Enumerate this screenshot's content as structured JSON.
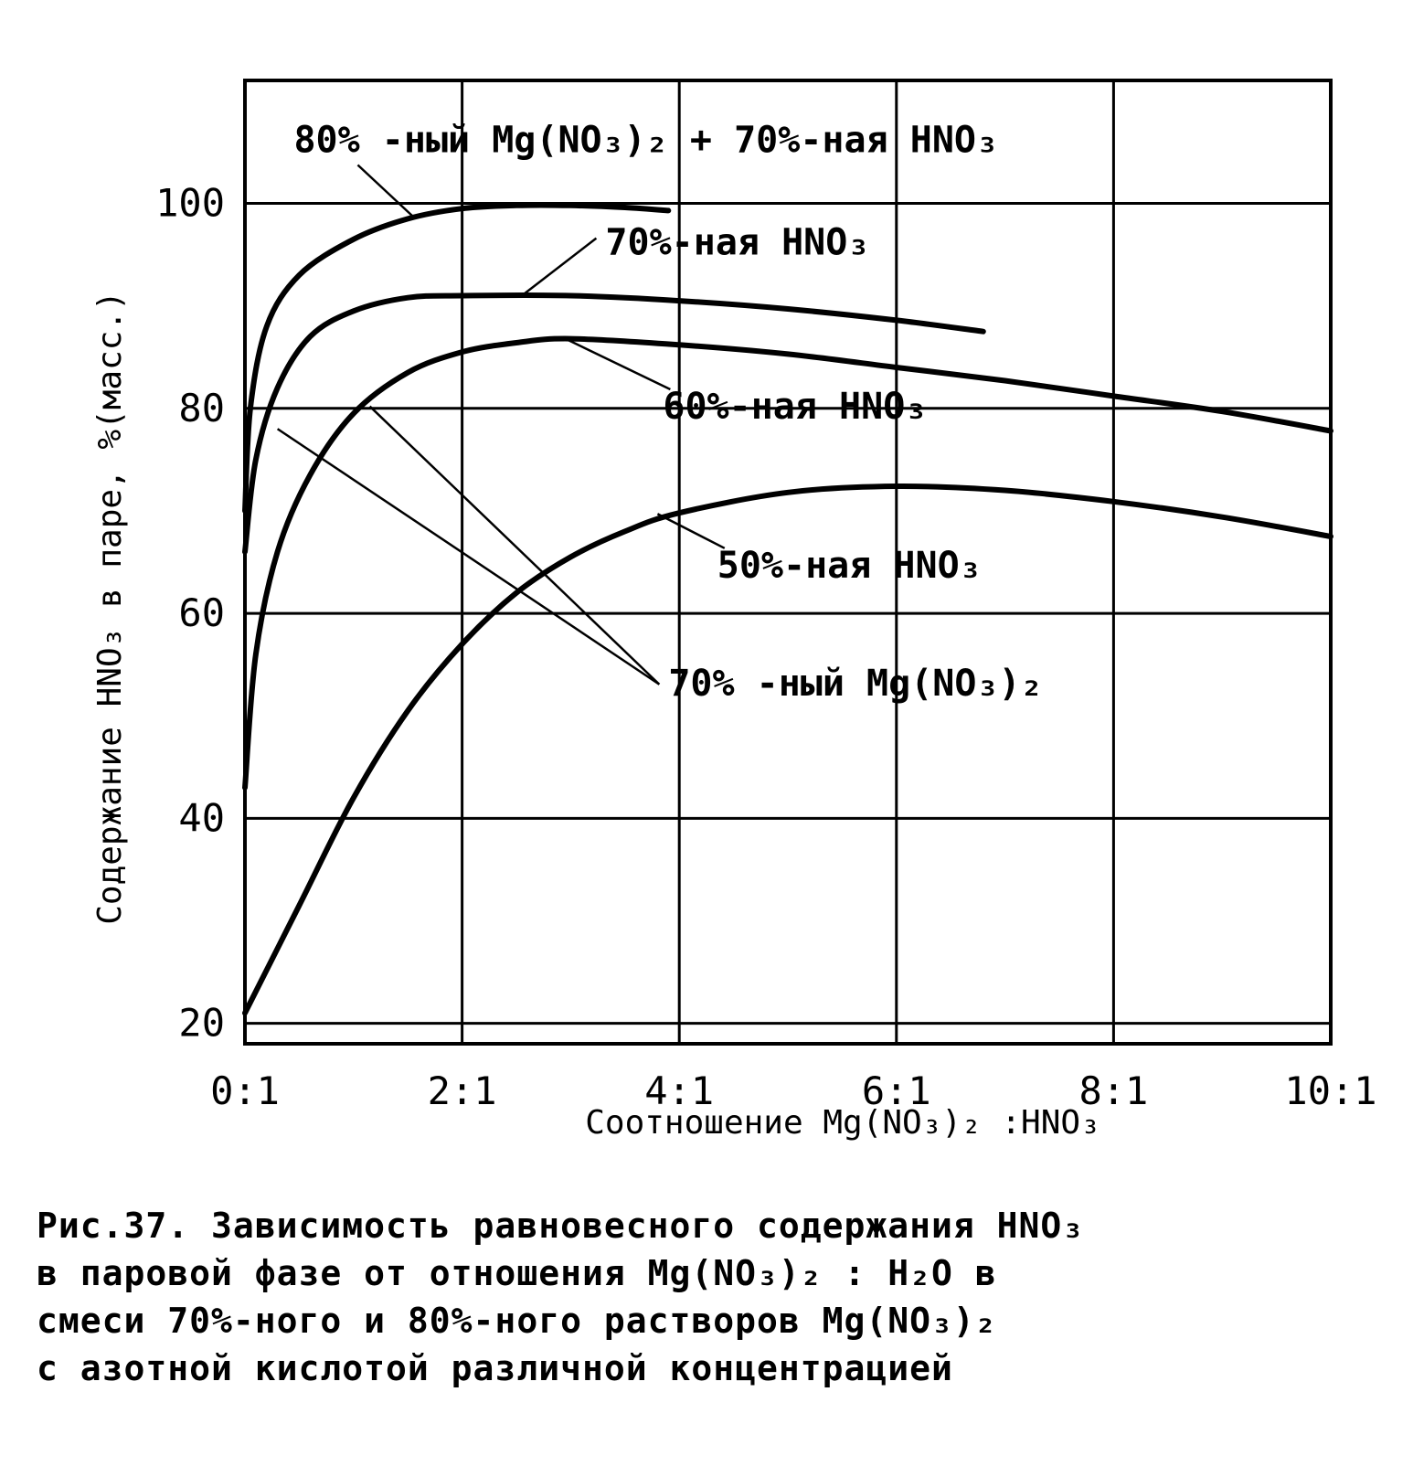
{
  "chart_data": {
    "type": "line",
    "xlabel": "Соотношение Mg(NO₃)₂ :HNO₃",
    "ylabel": "Содержание HNO₃ в паре, %(масс.)",
    "x_tick_labels": [
      "0:1",
      "2:1",
      "4:1",
      "6:1",
      "8:1",
      "10:1"
    ],
    "x_ticks": [
      0,
      2,
      4,
      6,
      8,
      10
    ],
    "y_ticks": [
      20,
      40,
      60,
      80,
      100
    ],
    "xlim": [
      0,
      10
    ],
    "ylim": [
      18,
      112
    ],
    "grid": true,
    "series": [
      {
        "name": "80%-ный Mg(NO₃)₂ + 70%-ная HNO₃",
        "x": [
          0,
          0.05,
          0.2,
          0.5,
          1.0,
          1.5,
          2.0,
          2.5,
          3.0,
          3.5,
          3.9
        ],
        "y": [
          70,
          80,
          88,
          93,
          96.5,
          98.5,
          99.5,
          99.8,
          99.8,
          99.6,
          99.3
        ]
      },
      {
        "name": "70%-ная HNO₃",
        "x": [
          0,
          0.1,
          0.3,
          0.6,
          1.0,
          1.5,
          2.0,
          3.0,
          4.0,
          5.0,
          6.0,
          6.8
        ],
        "y": [
          66,
          75,
          82,
          87,
          89.5,
          90.8,
          91.0,
          91.0,
          90.5,
          89.7,
          88.6,
          87.5
        ]
      },
      {
        "name": "60%-ная HNO₃",
        "x": [
          0,
          0.1,
          0.3,
          0.6,
          1.0,
          1.5,
          2.0,
          2.5,
          3.0,
          4.0,
          5.0,
          6.0,
          7.0,
          8.0,
          9.0,
          10.0
        ],
        "y": [
          43,
          56,
          66,
          73.5,
          79.5,
          83.5,
          85.5,
          86.4,
          86.8,
          86.2,
          85.3,
          84.0,
          82.7,
          81.2,
          79.7,
          77.8
        ]
      },
      {
        "name": "50%-ная HNO₃",
        "x": [
          0,
          0.5,
          1.0,
          1.5,
          2.0,
          2.5,
          3.0,
          3.5,
          4.0,
          5.0,
          6.0,
          7.0,
          8.0,
          9.0,
          10.0
        ],
        "y": [
          21,
          31.5,
          42,
          50.5,
          57,
          62,
          65.5,
          68,
          69.8,
          71.8,
          72.4,
          72.0,
          70.9,
          69.4,
          67.5
        ]
      }
    ],
    "annotations": [
      {
        "series": 0,
        "text": "80% -ный Mg(NO₃)₂ + 70%-ная HNO₃",
        "text_x": 0.45,
        "text_y": 105,
        "point_x": 1.55,
        "point_y": 98.7
      },
      {
        "series": 1,
        "text": "70%-ная HNO₃",
        "text_x": 3.32,
        "text_y": 95,
        "point_x": 2.55,
        "point_y": 91.0
      },
      {
        "series": 2,
        "text": "60%-ная HNO₃",
        "text_x": 3.85,
        "text_y": 79,
        "point_x": 2.95,
        "point_y": 86.8
      },
      {
        "series": 3,
        "text": "50%-ная HNO₃",
        "text_x": 4.35,
        "text_y": 63.5,
        "point_x": 3.8,
        "point_y": 69.7
      },
      {
        "series": "70%",
        "text": "70% -ный Mg(NO₃)₂",
        "text_x": 3.9,
        "text_y": 52,
        "targets": [
          [
            1.15,
            80.2
          ],
          [
            0.3,
            78
          ]
        ]
      }
    ]
  },
  "caption": {
    "lines": [
      "Рис.37. Зависимость равновесного содержания HNO₃",
      "в паровой фазе от отношения Mg(NO₃)₂ : H₂O в",
      "смеси 70%-ного и 80%-ного растворов Mg(NO₃)₂",
      "с азотной кислотой различной концентрацией"
    ]
  }
}
